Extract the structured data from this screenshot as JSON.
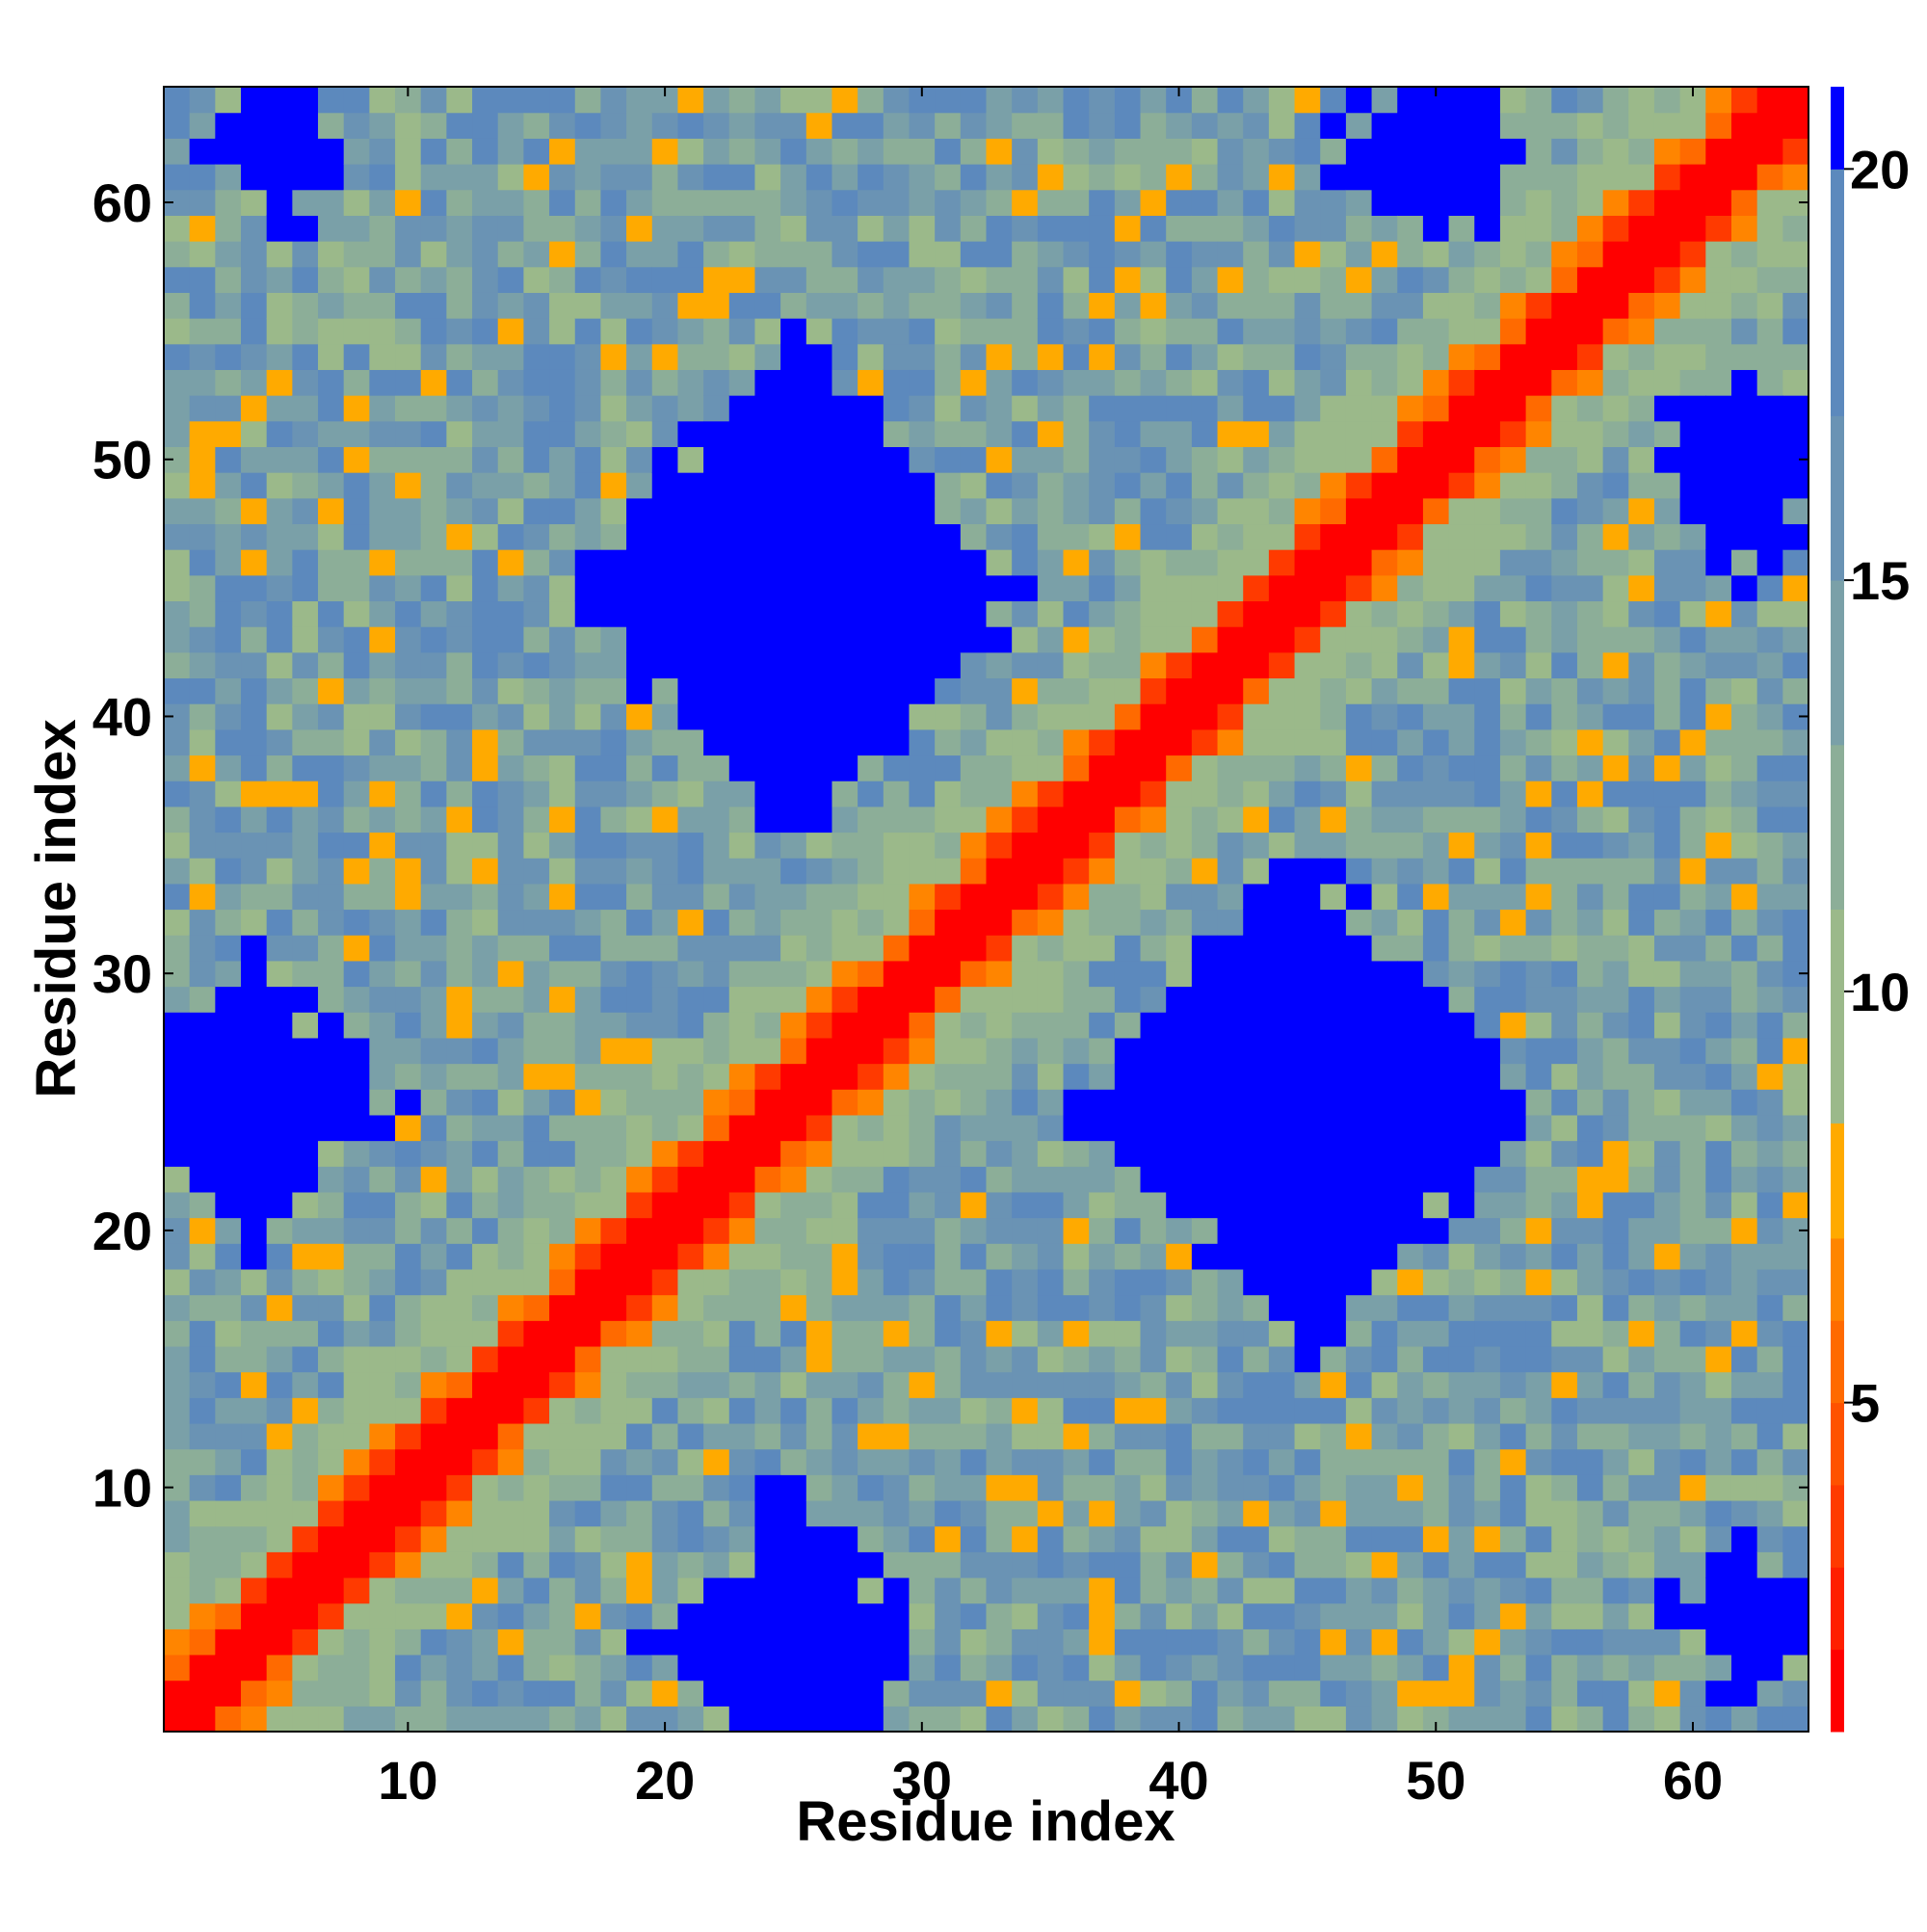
{
  "chart_data": {
    "type": "heatmap",
    "title": "",
    "xlabel": "Residue index",
    "ylabel": "Residue index",
    "n_residues": 64,
    "xlim": [
      0.5,
      64.5
    ],
    "ylim": [
      0.5,
      64.5
    ],
    "x_ticks": [
      10,
      20,
      30,
      40,
      50,
      60
    ],
    "y_ticks": [
      10,
      20,
      30,
      40,
      50,
      60
    ],
    "colorbar": {
      "range": [
        1,
        21
      ],
      "ticks": [
        5,
        10,
        15,
        20
      ],
      "bins": [
        {
          "lo": 1.0,
          "hi": 2.0,
          "color": "#ff0000"
        },
        {
          "lo": 2.0,
          "hi": 3.0,
          "color": "#ff1f00"
        },
        {
          "lo": 3.0,
          "hi": 4.0,
          "color": "#ff3a00"
        },
        {
          "lo": 4.0,
          "hi": 5.0,
          "color": "#ff5200"
        },
        {
          "lo": 5.0,
          "hi": 6.0,
          "color": "#ff6a00"
        },
        {
          "lo": 6.0,
          "hi": 7.0,
          "color": "#ff8500"
        },
        {
          "lo": 7.0,
          "hi": 8.4,
          "color": "#ffaa00"
        },
        {
          "lo": 8.4,
          "hi": 11.0,
          "color": "#9bb98a"
        },
        {
          "lo": 11.0,
          "hi": 13.0,
          "color": "#8cae98"
        },
        {
          "lo": 13.0,
          "hi": 15.0,
          "color": "#7aa0a8"
        },
        {
          "lo": 15.0,
          "hi": 17.0,
          "color": "#6a93b4"
        },
        {
          "lo": 17.0,
          "hi": 20.0,
          "color": "#5c89bd"
        },
        {
          "lo": 20.0,
          "hi": 21.0,
          "color": "#0000ff"
        }
      ]
    },
    "blue_regions": [
      {
        "center": [
          25,
          45
        ],
        "radius": 9
      },
      {
        "center": [
          45,
          25
        ],
        "radius": 9
      },
      {
        "center": [
          4,
          25
        ],
        "radius": 5.5
      },
      {
        "center": [
          25,
          4
        ],
        "radius": 5.5
      },
      {
        "center": [
          5,
          62
        ],
        "radius": 3
      },
      {
        "center": [
          62,
          5
        ],
        "radius": 3
      },
      {
        "center": [
          50,
          62
        ],
        "radius": 4
      },
      {
        "center": [
          62,
          50
        ],
        "radius": 4
      }
    ],
    "matrix_model": "symmetric contact-distance map; diagonal band red (d<=1), orange near-diagonal (2-3), pale green band (4-6), blue-grey background, saturated blue patches (>20) in the listed regions"
  }
}
